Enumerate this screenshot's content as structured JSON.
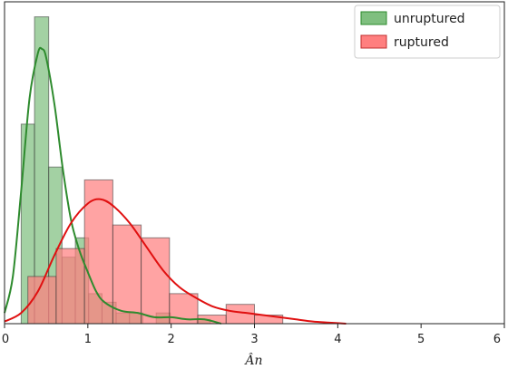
{
  "chart_data": {
    "type": "histogram",
    "xlabel": "Ân",
    "ylabel": "",
    "xlim": [
      0,
      6
    ],
    "ylim": [
      0,
      1.5
    ],
    "xticks": [
      0,
      1,
      2,
      3,
      4,
      5,
      6
    ],
    "grid": false,
    "legend_position": "top-right",
    "series": [
      {
        "name": "unruptured",
        "color": "#2e8b2e",
        "fill": "#7fbf7f",
        "bins": [
          {
            "x0": 0.2,
            "x1": 0.36,
            "value": 0.93
          },
          {
            "x0": 0.36,
            "x1": 0.53,
            "value": 1.43
          },
          {
            "x0": 0.53,
            "x1": 0.69,
            "value": 0.73
          },
          {
            "x0": 0.69,
            "x1": 0.85,
            "value": 0.31
          },
          {
            "x0": 0.85,
            "x1": 1.01,
            "value": 0.4
          },
          {
            "x0": 1.01,
            "x1": 1.17,
            "value": 0.14
          },
          {
            "x0": 1.17,
            "x1": 1.34,
            "value": 0.1
          },
          {
            "x0": 1.34,
            "x1": 1.5,
            "value": 0.05
          },
          {
            "x0": 1.5,
            "x1": 1.66,
            "value": 0.05
          },
          {
            "x0": 1.66,
            "x1": 1.82,
            "value": 0.0
          },
          {
            "x0": 1.82,
            "x1": 1.99,
            "value": 0.05
          },
          {
            "x0": 1.99,
            "x1": 2.15,
            "value": 0.0
          },
          {
            "x0": 2.15,
            "x1": 2.31,
            "value": 0.0
          },
          {
            "x0": 2.31,
            "x1": 2.47,
            "value": 0.02
          }
        ],
        "kde": {
          "x": [
            0.0,
            0.1,
            0.2,
            0.3,
            0.4,
            0.45,
            0.5,
            0.6,
            0.7,
            0.8,
            0.9,
            1.0,
            1.1,
            1.2,
            1.4,
            1.6,
            1.8,
            2.0,
            2.2,
            2.4,
            2.6
          ],
          "y": [
            0.05,
            0.22,
            0.62,
            1.05,
            1.26,
            1.28,
            1.24,
            1.02,
            0.72,
            0.48,
            0.34,
            0.24,
            0.15,
            0.1,
            0.06,
            0.05,
            0.03,
            0.03,
            0.02,
            0.02,
            0.0
          ]
        }
      },
      {
        "name": "ruptured",
        "color": "#e01010",
        "fill": "#ff7f7f",
        "bins": [
          {
            "x0": 0.28,
            "x1": 0.62,
            "value": 0.22
          },
          {
            "x0": 0.62,
            "x1": 0.96,
            "value": 0.35
          },
          {
            "x0": 0.96,
            "x1": 1.3,
            "value": 0.67
          },
          {
            "x0": 1.3,
            "x1": 1.64,
            "value": 0.46
          },
          {
            "x0": 1.64,
            "x1": 1.98,
            "value": 0.4
          },
          {
            "x0": 1.98,
            "x1": 2.32,
            "value": 0.14
          },
          {
            "x0": 2.32,
            "x1": 2.66,
            "value": 0.04
          },
          {
            "x0": 2.66,
            "x1": 3.0,
            "value": 0.09
          },
          {
            "x0": 3.0,
            "x1": 3.34,
            "value": 0.04
          }
        ],
        "kde": {
          "x": [
            0.0,
            0.2,
            0.4,
            0.6,
            0.8,
            1.0,
            1.15,
            1.3,
            1.5,
            1.7,
            1.9,
            2.1,
            2.3,
            2.5,
            2.7,
            2.9,
            3.1,
            3.3,
            3.5,
            3.7,
            3.9,
            4.1
          ],
          "y": [
            0.01,
            0.05,
            0.15,
            0.32,
            0.47,
            0.56,
            0.58,
            0.55,
            0.47,
            0.36,
            0.25,
            0.17,
            0.12,
            0.08,
            0.06,
            0.05,
            0.04,
            0.03,
            0.02,
            0.01,
            0.005,
            0.0
          ]
        }
      }
    ]
  }
}
